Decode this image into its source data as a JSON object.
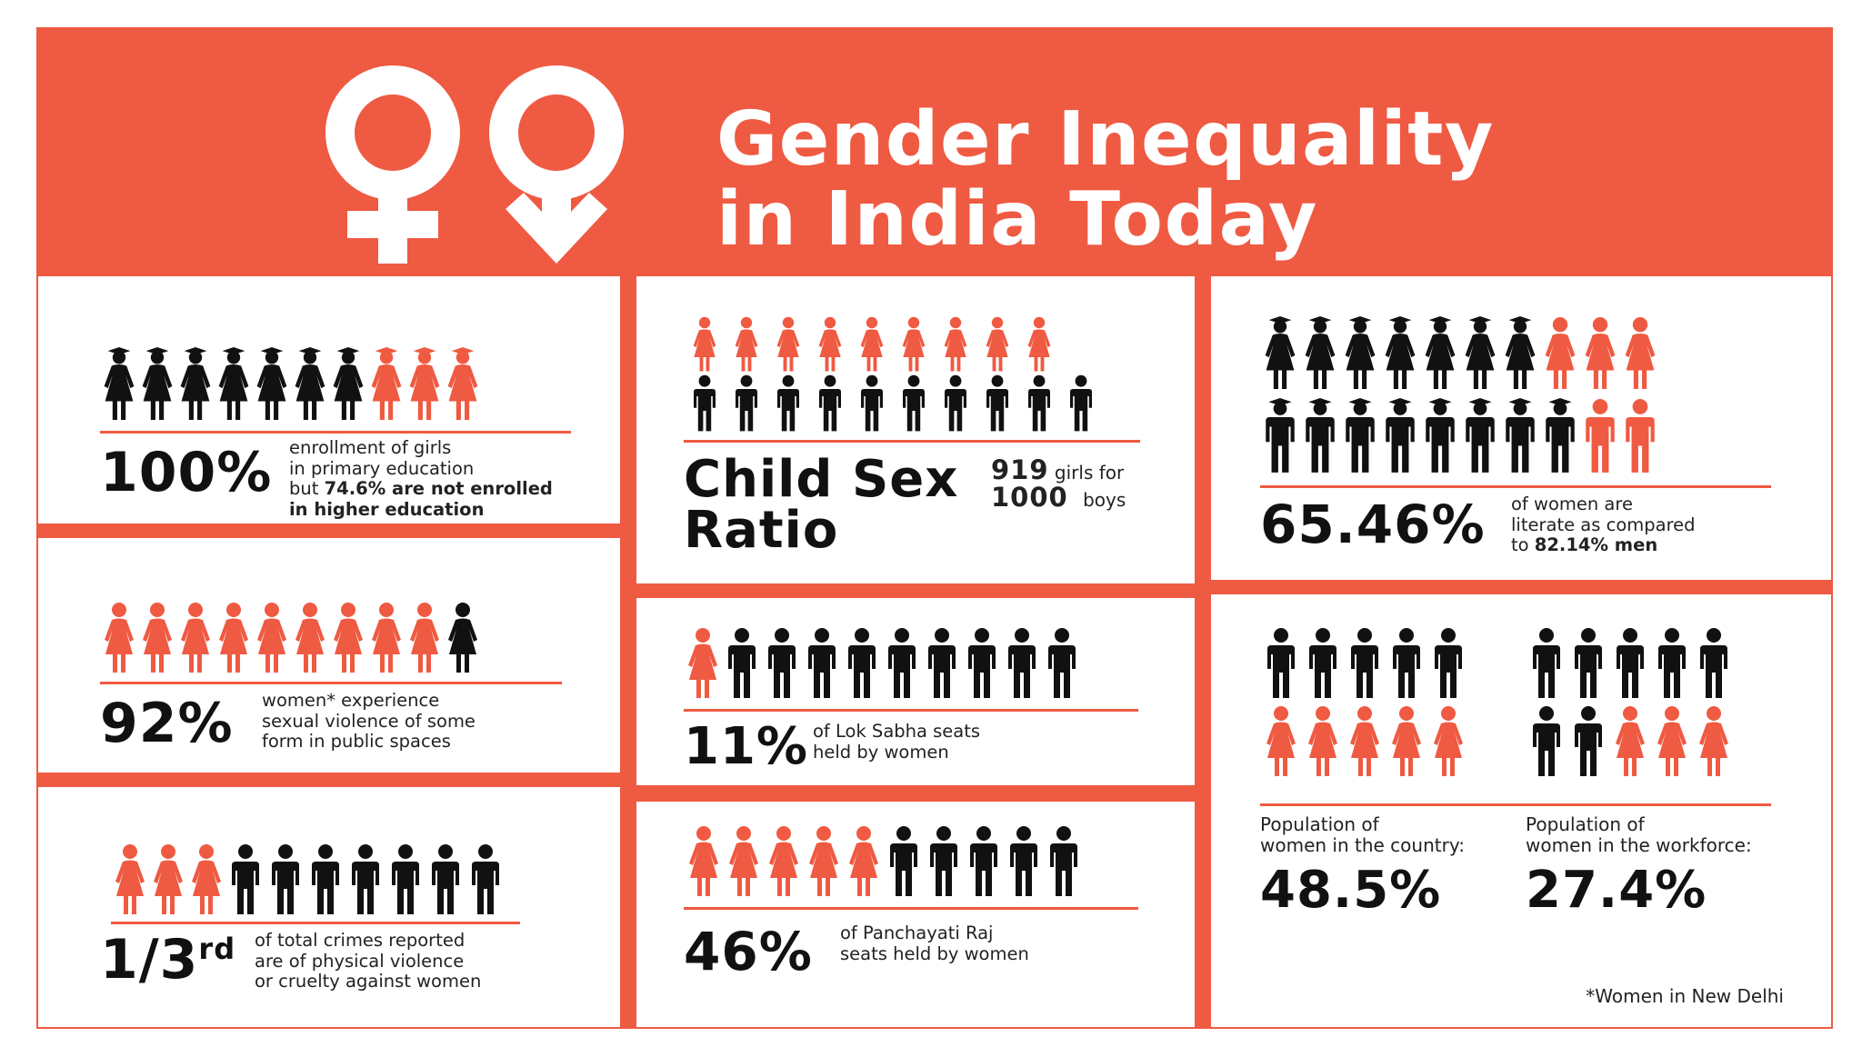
{
  "header": {
    "title_line1": "Gender Inequality",
    "title_line2": "in India Today"
  },
  "colors": {
    "accent": "#ef5a42",
    "dark": "#111111",
    "panel": "#ffffff"
  },
  "education": {
    "stat": "100%",
    "desc_line1": "enrollment of girls",
    "desc_line2": "in primary education",
    "desc_line3_normal": "but ",
    "desc_line3_bold": "74.6% are not enrolled",
    "desc_line4_bold": "in higher education",
    "icons_dark": 7,
    "icons_red": 3
  },
  "violence": {
    "stat": "92%",
    "desc_line1": "women* experience",
    "desc_line2": "sexual violence of some",
    "desc_line3": "form in public spaces",
    "icons_red": 9,
    "icons_dark": 1
  },
  "crimes": {
    "stat_main": "1/3",
    "stat_sup": "rd",
    "desc_line1": "of total crimes reported",
    "desc_line2": "are of physical violence",
    "desc_line3": "or cruelty against women",
    "icons_red": 3,
    "icons_dark": 7
  },
  "child_sex_ratio": {
    "title_line1": "Child Sex",
    "title_line2": "Ratio",
    "girls_number": "919",
    "girls_label": "girls for",
    "boys_number": "1000",
    "boys_label": "boys",
    "icons_red": 9,
    "icons_dark": 10
  },
  "lok_sabha": {
    "stat": "11%",
    "desc_line1": "of Lok Sabha seats",
    "desc_line2": "held by women",
    "icons_red": 1,
    "icons_dark": 9
  },
  "panchayati": {
    "stat": "46%",
    "desc_line1": "of Panchayati Raj",
    "desc_line2": "seats held by women",
    "icons_red": 5,
    "icons_dark": 5
  },
  "literacy": {
    "stat": "65.46%",
    "desc_line1": "of women are",
    "desc_line2": "literate as compared",
    "desc_line3_normal": "to ",
    "desc_line3_bold": "82.14% men",
    "women_dark": 7,
    "women_red": 3,
    "men_dark": 8,
    "men_red": 2
  },
  "population": {
    "country_label_line1": "Population of",
    "country_label_line2": "women in the country:",
    "country_value": "48.5%",
    "workforce_label_line1": "Population of",
    "workforce_label_line2": "women in the workforce:",
    "workforce_value": "27.4%",
    "footnote": "*Women in New Delhi"
  }
}
